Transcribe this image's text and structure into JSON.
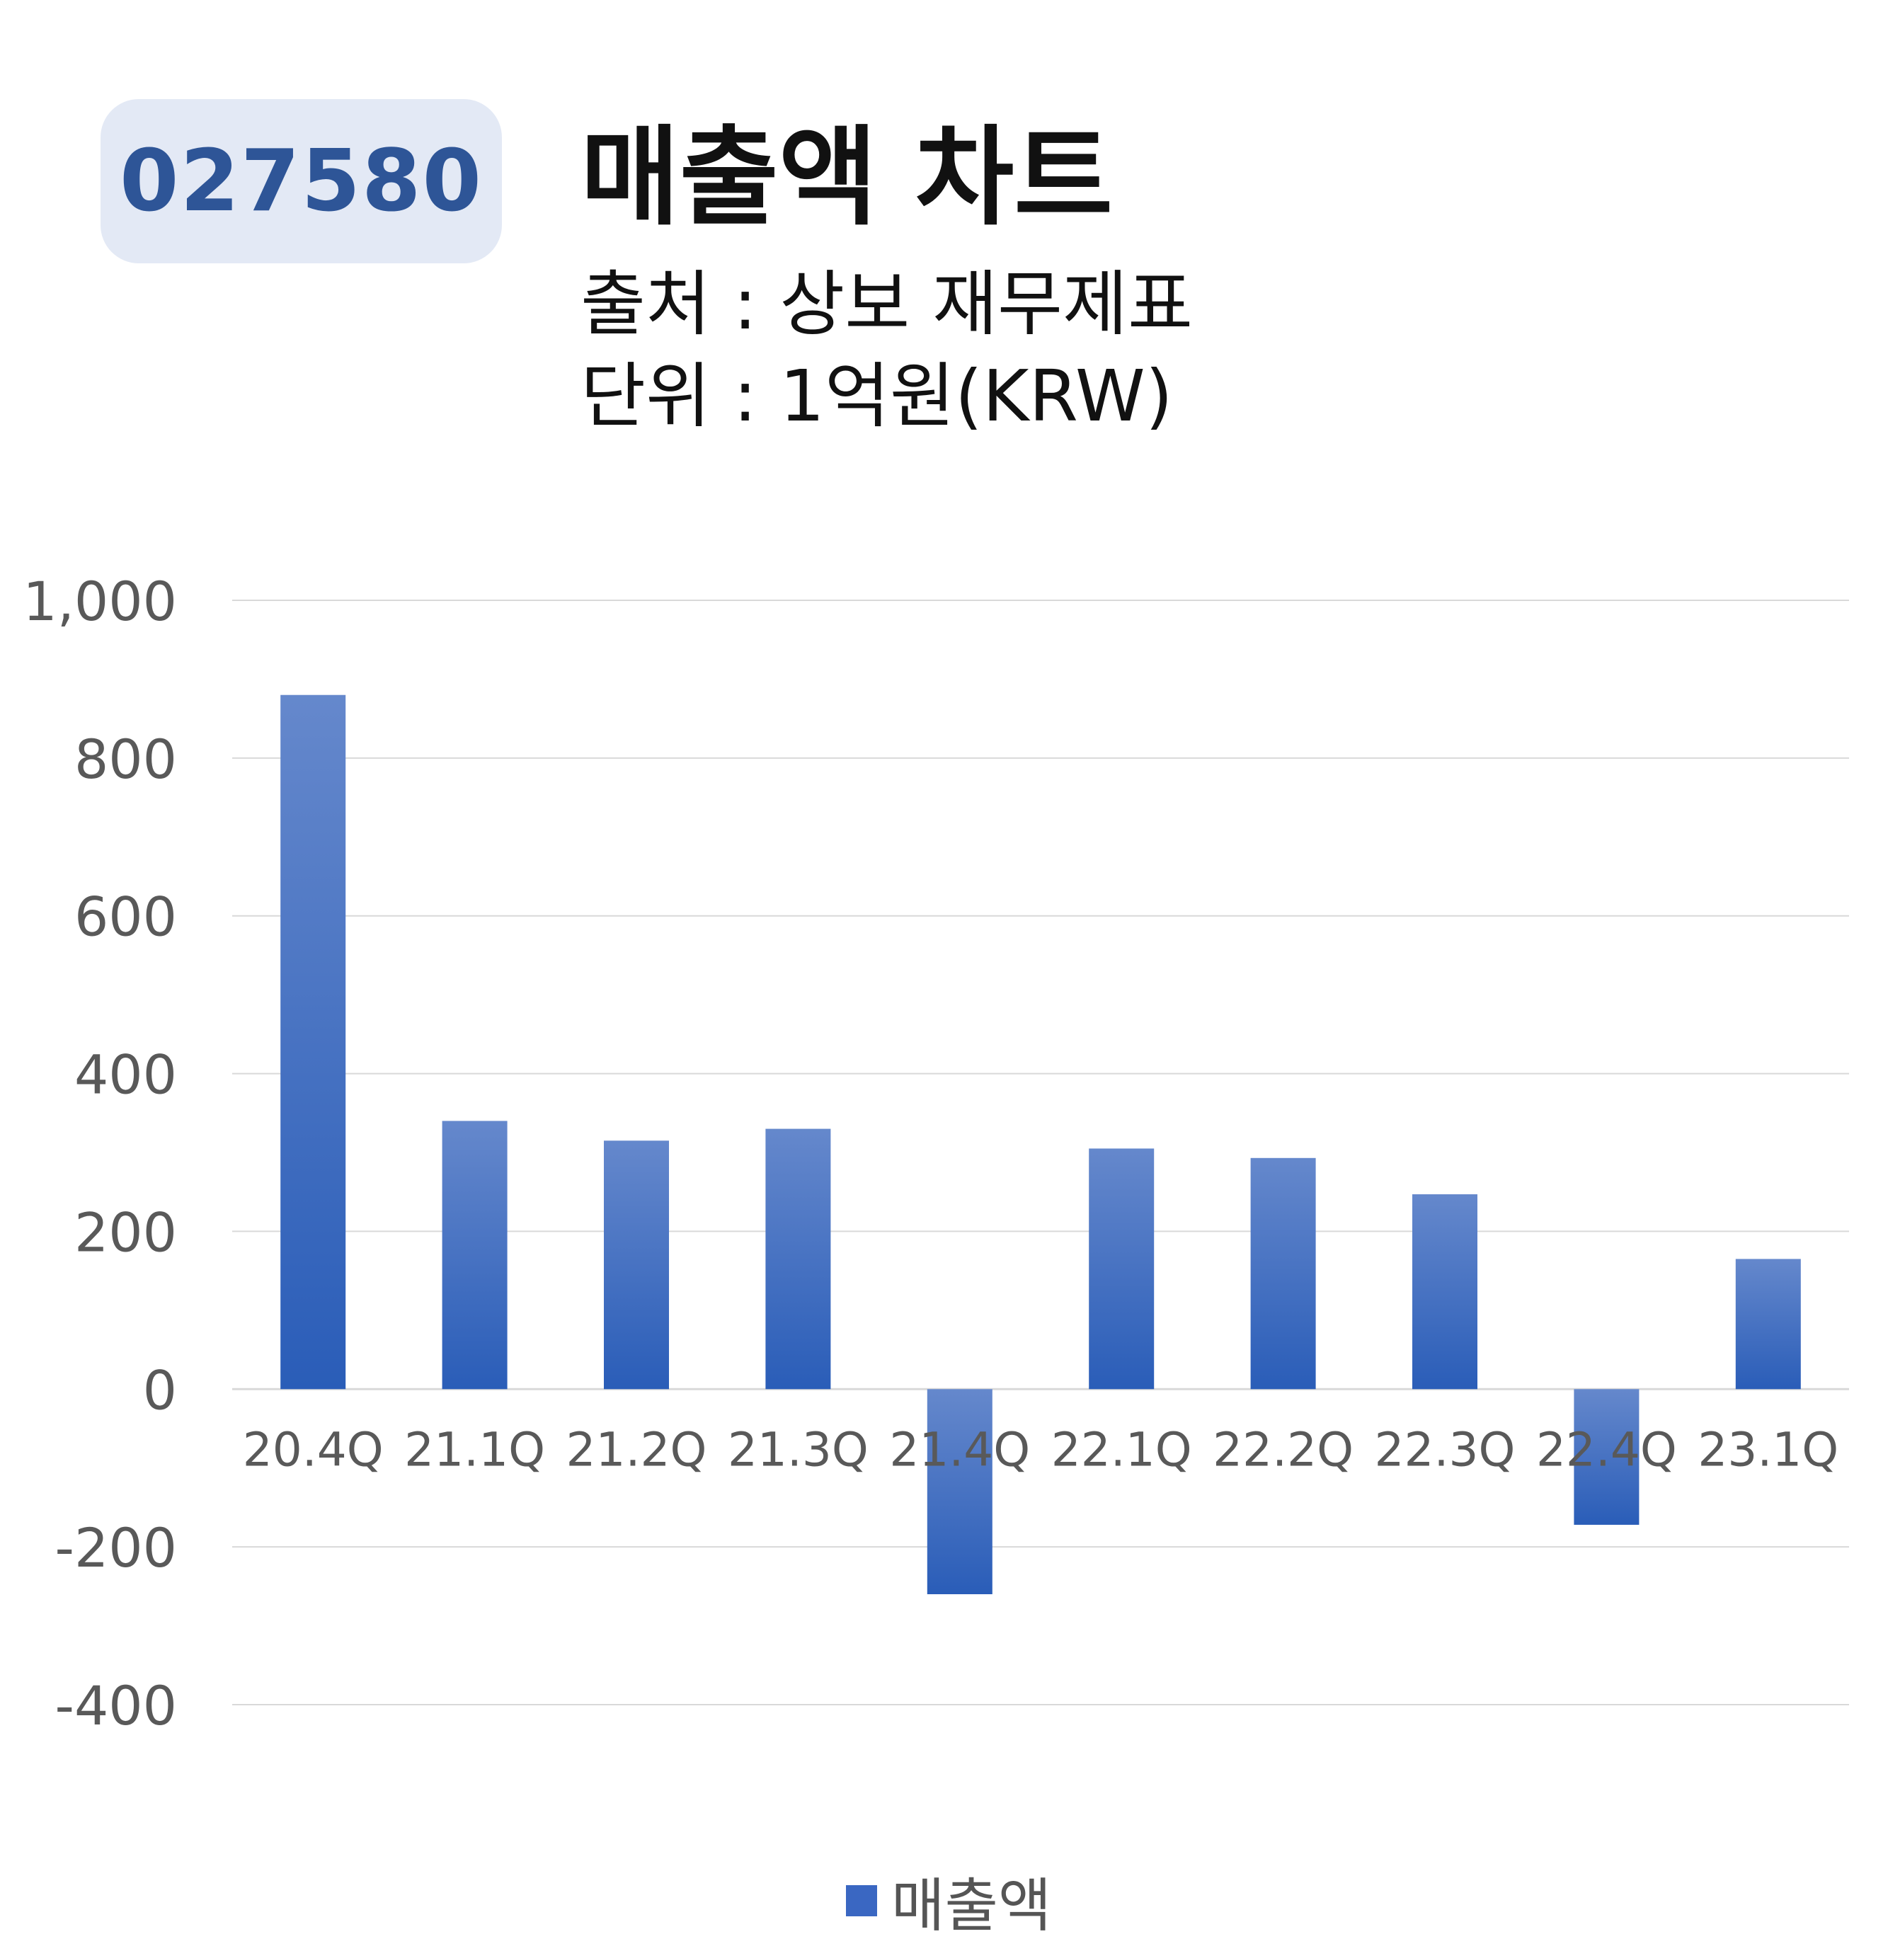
{
  "header": {
    "ticker": "027580",
    "title": "매출액 차트",
    "source_line": "출처 : 상보 재무제표",
    "unit_line": "단위 : 1억원(KRW)"
  },
  "colors": {
    "bar_top": "#6588cc",
    "bar_bottom": "#2a5db8",
    "badge_bg": "#e3e9f5",
    "badge_text": "#2e5597",
    "grid": "#d9d9d9",
    "tick_text": "#595959"
  },
  "chart_data": {
    "type": "bar",
    "categories": [
      "20.4Q",
      "21.1Q",
      "21.2Q",
      "21.3Q",
      "21.4Q",
      "22.1Q",
      "22.2Q",
      "22.3Q",
      "22.4Q",
      "23.1Q"
    ],
    "series": [
      {
        "name": "매출액",
        "values": [
          880,
          340,
          315,
          330,
          -260,
          305,
          293,
          247,
          -172,
          165
        ]
      }
    ],
    "y_ticks": [
      "1,000",
      "800",
      "600",
      "400",
      "200",
      "0",
      "-200",
      "-400"
    ],
    "y_tick_values": [
      1000,
      800,
      600,
      400,
      200,
      0,
      -200,
      -400
    ],
    "ylim": [
      -400,
      1000
    ],
    "grid": true,
    "legend_position": "bottom-center"
  }
}
